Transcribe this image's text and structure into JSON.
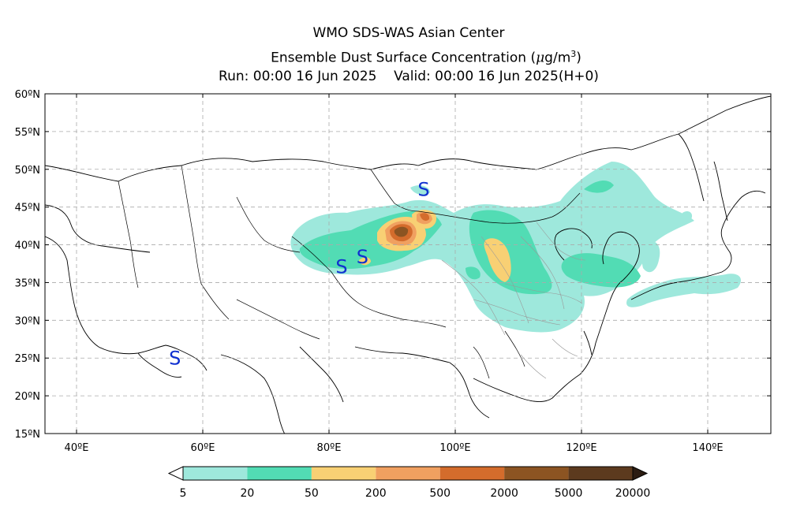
{
  "title": {
    "line1": "WMO SDS-WAS Asian Center",
    "line2_main": "Ensemble Dust Surface Concentration (",
    "line2_unit_mu": "μ",
    "line2_unit_rest": "g/m",
    "line2_unit_exp": "3",
    "line2_close": ")",
    "run_label": "Run: 00:00 16 Jun 2025",
    "valid_label": "Valid: 00:00 16 Jun 2025(H+0)"
  },
  "axes": {
    "lon_range": [
      35,
      150
    ],
    "lat_range": [
      15,
      60
    ],
    "lon_ticks": [
      40,
      60,
      80,
      100,
      120,
      140
    ],
    "lat_ticks": [
      15,
      20,
      25,
      30,
      35,
      40,
      45,
      50,
      55,
      60
    ],
    "lon_tick_labels": [
      "40ºE",
      "60ºE",
      "80ºE",
      "100ºE",
      "120ºE",
      "140ºE"
    ],
    "lat_tick_labels": [
      "15ºN",
      "20ºN",
      "25ºN",
      "30ºN",
      "35ºN",
      "40ºN",
      "45ºN",
      "50ºN",
      "55ºN",
      "60ºN"
    ],
    "grid": true
  },
  "colorbar": {
    "levels": [
      "5",
      "20",
      "50",
      "200",
      "500",
      "2000",
      "5000",
      "20000"
    ],
    "colors": [
      "#9ee8dc",
      "#52dcb4",
      "#f8d074",
      "#f0a060",
      "#d46c2c",
      "#8c5422",
      "#5c3a1e",
      "#2c1c12"
    ],
    "extend": "both"
  },
  "station_markers": [
    {
      "label": "S",
      "lon": 95.0,
      "lat": 47.4
    },
    {
      "label": "S",
      "lon": 85.3,
      "lat": 38.5
    },
    {
      "label": "S",
      "lon": 82.0,
      "lat": 37.2
    },
    {
      "label": "S",
      "lon": 55.6,
      "lat": 25.1
    }
  ]
}
